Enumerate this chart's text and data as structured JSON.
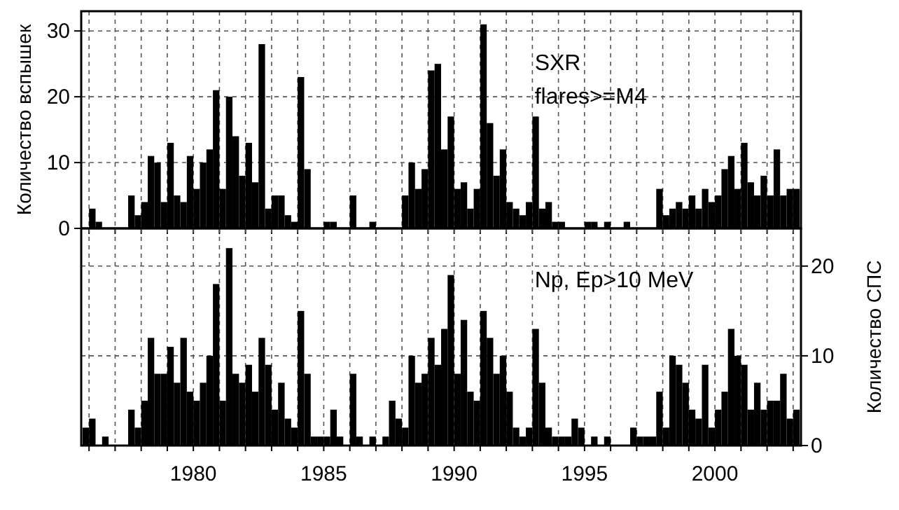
{
  "chart_data": [
    {
      "type": "histogram",
      "ylabel": "Количество вспышек",
      "annotations": [
        "SXR",
        "flares>=M4"
      ],
      "xlim": [
        1975.7,
        2003.3
      ],
      "ylim": [
        0,
        33
      ],
      "yticks": [
        0,
        10,
        20,
        30
      ],
      "xticks": [
        {
          "value": 1976,
          "label": null
        },
        {
          "value": 1977,
          "label": null
        },
        {
          "value": 1978,
          "label": null
        },
        {
          "value": 1979,
          "label": null
        },
        {
          "value": 1980,
          "label": null
        },
        {
          "value": 1981,
          "label": null
        },
        {
          "value": 1982,
          "label": null
        },
        {
          "value": 1983,
          "label": null
        },
        {
          "value": 1984,
          "label": null
        },
        {
          "value": 1985,
          "label": null
        },
        {
          "value": 1986,
          "label": null
        },
        {
          "value": 1987,
          "label": null
        },
        {
          "value": 1988,
          "label": null
        },
        {
          "value": 1989,
          "label": null
        },
        {
          "value": 1990,
          "label": null
        },
        {
          "value": 1991,
          "label": null
        },
        {
          "value": 1992,
          "label": null
        },
        {
          "value": 1993,
          "label": null
        },
        {
          "value": 1994,
          "label": null
        },
        {
          "value": 1995,
          "label": null
        },
        {
          "value": 1996,
          "label": null
        },
        {
          "value": 1997,
          "label": null
        },
        {
          "value": 1998,
          "label": null
        },
        {
          "value": 1999,
          "label": null
        },
        {
          "value": 2000,
          "label": null
        },
        {
          "value": 2001,
          "label": null
        },
        {
          "value": 2002,
          "label": null
        },
        {
          "value": 2003,
          "label": null
        }
      ],
      "tick_labels": "y",
      "grid": true,
      "bins": [
        1975.75,
        1976,
        1976.25,
        1976.5,
        1976.75,
        1977,
        1977.25,
        1977.5,
        1977.75,
        1978,
        1978.25,
        1978.5,
        1978.75,
        1979,
        1979.25,
        1979.5,
        1979.75,
        1980,
        1980.25,
        1980.5,
        1980.75,
        1981,
        1981.25,
        1981.5,
        1981.75,
        1982,
        1982.25,
        1982.5,
        1982.75,
        1983,
        1983.25,
        1983.5,
        1983.75,
        1984,
        1984.25,
        1984.5,
        1984.75,
        1985,
        1985.25,
        1985.5,
        1985.75,
        1986,
        1986.25,
        1986.5,
        1986.75,
        1987,
        1987.25,
        1987.5,
        1987.75,
        1988,
        1988.25,
        1988.5,
        1988.75,
        1989,
        1989.25,
        1989.5,
        1989.75,
        1990,
        1990.25,
        1990.5,
        1990.75,
        1991,
        1991.25,
        1991.5,
        1991.75,
        1992,
        1992.25,
        1992.5,
        1992.75,
        1993,
        1993.25,
        1993.5,
        1993.75,
        1994,
        1994.25,
        1994.5,
        1994.75,
        1995,
        1995.25,
        1995.5,
        1995.75,
        1996,
        1996.25,
        1996.5,
        1996.75,
        1997,
        1997.25,
        1997.5,
        1997.75,
        1998,
        1998.25,
        1998.5,
        1998.75,
        1999,
        1999.25,
        1999.5,
        1999.75,
        2000,
        2000.25,
        2000.5,
        2000.75,
        2001,
        2001.25,
        2001.5,
        2001.75,
        2002,
        2002.25,
        2002.5,
        2002.75,
        2003,
        2003.25
      ],
      "series": [
        {
          "color": "#000000",
          "values": [
            0,
            3,
            1,
            0,
            0,
            0,
            0,
            5,
            2,
            4,
            11,
            10,
            4,
            13,
            5,
            4,
            11,
            6,
            10,
            12,
            21,
            6,
            20,
            14,
            8,
            13,
            7,
            28,
            3,
            5,
            5,
            2,
            1,
            23,
            9,
            0,
            0,
            1,
            1,
            0,
            0,
            5,
            0,
            0,
            1,
            0,
            0,
            0,
            0,
            5,
            10,
            6,
            9,
            24,
            25,
            12,
            17,
            6,
            7,
            3,
            6,
            31,
            16,
            8,
            12,
            4,
            3,
            2,
            4,
            17,
            3,
            4,
            1,
            1,
            0,
            0,
            0,
            1,
            1,
            0,
            1,
            0,
            0,
            1,
            0,
            0,
            0,
            0,
            6,
            2,
            3,
            4,
            3,
            5,
            3,
            6,
            4,
            5,
            9,
            11,
            6,
            13,
            7,
            5,
            8,
            5,
            12,
            5,
            6,
            6
          ]
        }
      ]
    },
    {
      "type": "histogram",
      "y2label": "Количество СПС",
      "annotations": [
        "Np, Ep>10 MeV"
      ],
      "xlim": [
        1975.7,
        2003.3
      ],
      "y2lim": [
        0,
        24.2
      ],
      "y2ticks": [
        0,
        10,
        20
      ],
      "xticks": [
        {
          "value": 1976,
          "label": null
        },
        {
          "value": 1977,
          "label": null
        },
        {
          "value": 1978,
          "label": null
        },
        {
          "value": 1979,
          "label": null
        },
        1980,
        {
          "value": 1981,
          "label": null
        },
        {
          "value": 1982,
          "label": null
        },
        {
          "value": 1983,
          "label": null
        },
        {
          "value": 1984,
          "label": null
        },
        1985,
        {
          "value": 1986,
          "label": null
        },
        {
          "value": 1987,
          "label": null
        },
        {
          "value": 1988,
          "label": null
        },
        {
          "value": 1989,
          "label": null
        },
        1990,
        {
          "value": 1991,
          "label": null
        },
        {
          "value": 1992,
          "label": null
        },
        {
          "value": 1993,
          "label": null
        },
        {
          "value": 1994,
          "label": null
        },
        1995,
        {
          "value": 1996,
          "label": null
        },
        {
          "value": 1997,
          "label": null
        },
        {
          "value": 1998,
          "label": null
        },
        {
          "value": 1999,
          "label": null
        },
        2000,
        {
          "value": 2001,
          "label": null
        },
        {
          "value": 2002,
          "label": null
        },
        {
          "value": 2003,
          "label": null
        }
      ],
      "grid": true,
      "bins": [
        1975.75,
        1976,
        1976.25,
        1976.5,
        1976.75,
        1977,
        1977.25,
        1977.5,
        1977.75,
        1978,
        1978.25,
        1978.5,
        1978.75,
        1979,
        1979.25,
        1979.5,
        1979.75,
        1980,
        1980.25,
        1980.5,
        1980.75,
        1981,
        1981.25,
        1981.5,
        1981.75,
        1982,
        1982.25,
        1982.5,
        1982.75,
        1983,
        1983.25,
        1983.5,
        1983.75,
        1984,
        1984.25,
        1984.5,
        1984.75,
        1985,
        1985.25,
        1985.5,
        1985.75,
        1986,
        1986.25,
        1986.5,
        1986.75,
        1987,
        1987.25,
        1987.5,
        1987.75,
        1988,
        1988.25,
        1988.5,
        1988.75,
        1989,
        1989.25,
        1989.5,
        1989.75,
        1990,
        1990.25,
        1990.5,
        1990.75,
        1991,
        1991.25,
        1991.5,
        1991.75,
        1992,
        1992.25,
        1992.5,
        1992.75,
        1993,
        1993.25,
        1993.5,
        1993.75,
        1994,
        1994.25,
        1994.5,
        1994.75,
        1995,
        1995.25,
        1995.5,
        1995.75,
        1996,
        1996.25,
        1996.5,
        1996.75,
        1997,
        1997.25,
        1997.5,
        1997.75,
        1998,
        1998.25,
        1998.5,
        1998.75,
        1999,
        1999.25,
        1999.5,
        1999.75,
        2000,
        2000.25,
        2000.5,
        2000.75,
        2001,
        2001.25,
        2001.5,
        2001.75,
        2002,
        2002.25,
        2002.5,
        2002.75,
        2003,
        2003.25
      ],
      "series": [
        {
          "color": "#000000",
          "axis": "y2",
          "values": [
            2,
            3,
            0,
            1,
            0,
            0,
            0,
            4,
            2,
            5,
            12,
            8,
            8,
            11,
            7,
            12,
            6,
            5,
            7,
            10,
            18,
            5,
            22,
            8,
            7,
            9,
            6,
            12,
            9,
            4,
            7,
            3,
            2,
            15,
            8,
            1,
            1,
            1,
            4,
            1,
            0,
            8,
            1,
            0,
            1,
            0,
            1,
            5,
            3,
            2,
            10,
            7,
            8,
            12,
            9,
            13,
            19,
            8,
            14,
            6,
            5,
            15,
            12,
            8,
            10,
            6,
            2,
            1,
            2,
            13,
            7,
            2,
            1,
            1,
            1,
            3,
            2,
            0,
            1,
            0,
            1,
            0,
            0,
            0,
            2,
            1,
            1,
            1,
            6,
            2,
            10,
            9,
            7,
            4,
            3,
            9,
            2,
            4,
            6,
            13,
            10,
            9,
            4,
            7,
            4,
            5,
            5,
            8,
            3,
            4
          ]
        }
      ]
    }
  ]
}
